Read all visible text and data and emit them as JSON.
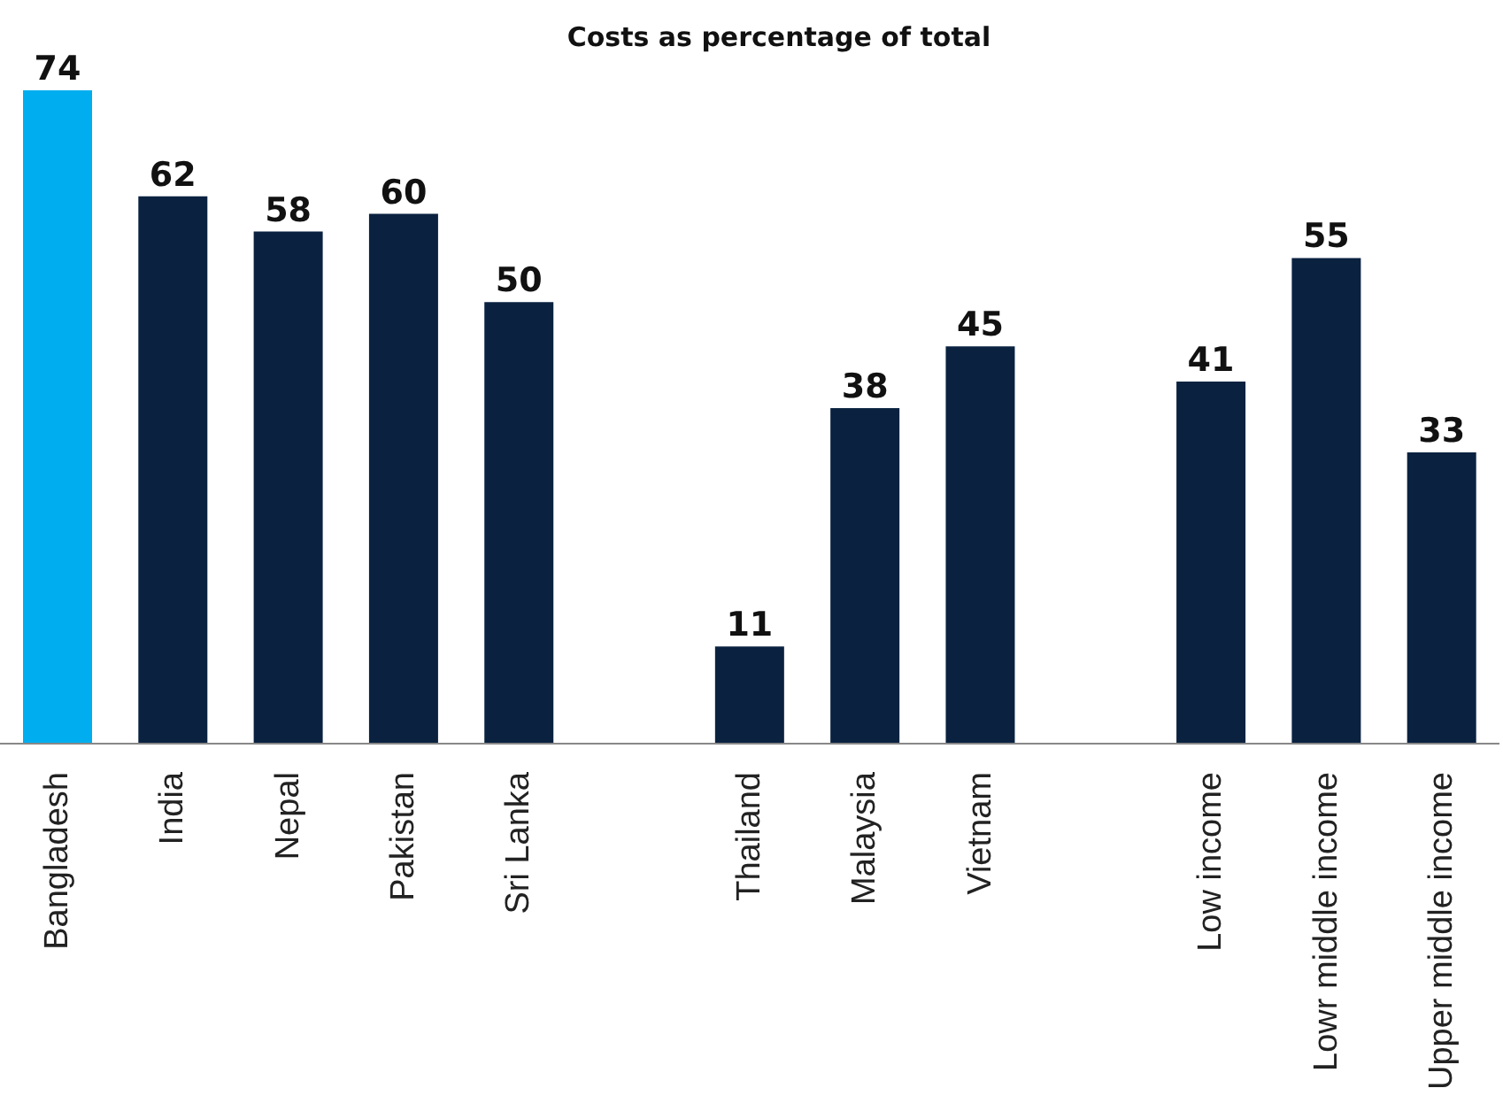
{
  "chart_data": {
    "type": "bar",
    "title": "Costs as percentage of total",
    "categories": [
      "Bangladesh",
      "India",
      "Nepal",
      "Pakistan",
      "Sri Lanka",
      null,
      "Thailand",
      "Malaysia",
      "Vietnam",
      null,
      "Low income",
      "Lowr middle income",
      "Upper middle income"
    ],
    "values": [
      74,
      62,
      58,
      60,
      50,
      null,
      11,
      38,
      45,
      null,
      41,
      55,
      33
    ],
    "colors": [
      "#00aeef",
      "#0a2240",
      "#0a2240",
      "#0a2240",
      "#0a2240",
      "#0a2240",
      "#0a2240",
      "#0a2240",
      "#0a2240",
      "#0a2240",
      "#0a2240",
      "#0a2240",
      "#0a2240"
    ],
    "data_labels": true,
    "grid": false,
    "legend": false
  }
}
